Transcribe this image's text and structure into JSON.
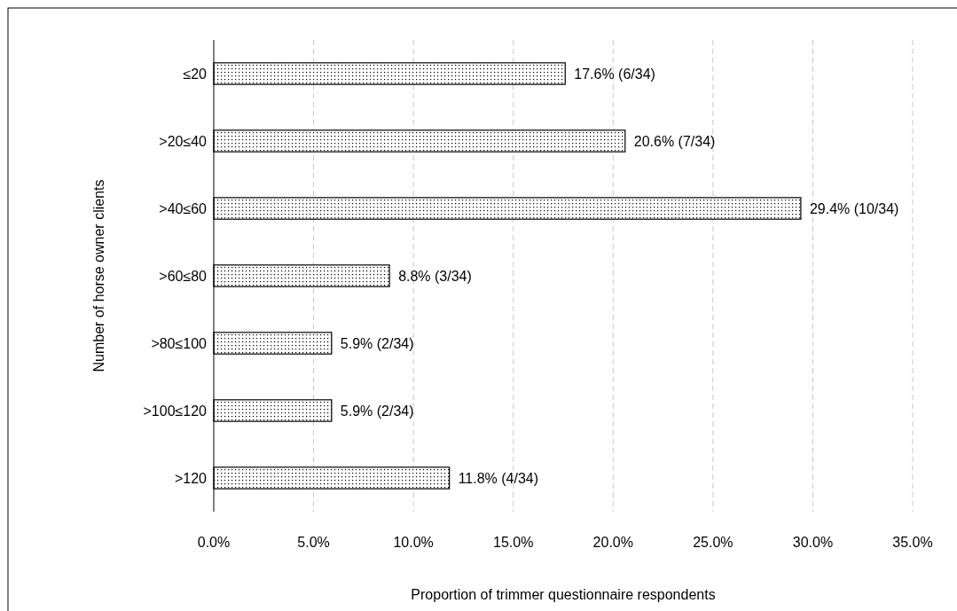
{
  "chart_data": {
    "type": "bar",
    "orientation": "horizontal",
    "xlabel": "Proportion of trimmer questionnaire respondents",
    "ylabel": "Number of horse owner clients",
    "categories": [
      "≤20",
      ">20≤40",
      ">40≤60",
      ">60≤80",
      ">80≤100",
      ">100≤120",
      ">120"
    ],
    "values": [
      17.6,
      20.6,
      29.4,
      8.8,
      5.9,
      5.9,
      11.8
    ],
    "value_labels": [
      "17.6% (6/34)",
      "20.6% (7/34)",
      "29.4% (10/34)",
      "8.8% (3/34)",
      "5.9% (2/34)",
      "5.9% (2/34)",
      "11.8% (4/34)"
    ],
    "xlim": [
      0,
      35
    ],
    "xticks": [
      {
        "value": 0,
        "label": "0.0%"
      },
      {
        "value": 5,
        "label": "5.0%"
      },
      {
        "value": 10,
        "label": "10.0%"
      },
      {
        "value": 15,
        "label": "15.0%"
      },
      {
        "value": 20,
        "label": "20.0%"
      },
      {
        "value": 25,
        "label": "25.0%"
      },
      {
        "value": 30,
        "label": "30.0%"
      },
      {
        "value": 35,
        "label": "35.0%"
      }
    ],
    "grid": "x"
  }
}
